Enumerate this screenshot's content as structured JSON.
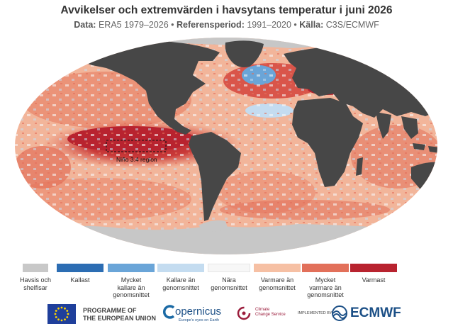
{
  "title": "Avvikelser och extremvärden i havsytans temperatur i juni 2026",
  "subtitle": {
    "data_label": "Data:",
    "data_value": "ERA5 1979–2026",
    "ref_label": "Referensperiod:",
    "ref_value": "1991–2020",
    "source_label": "Källa:",
    "source_value": "C3S/ECMWF"
  },
  "map": {
    "annotation": "Niño 3.4 region",
    "land_color": "#474747",
    "ice_color": "#c7c7c7"
  },
  "legend": [
    {
      "label": "Havsis och\nshelfisar",
      "color": "#c8c8c8"
    },
    {
      "label": "Kallast",
      "color": "#2c6db3"
    },
    {
      "label": "Mycket\nkallare än\ngenomsnittet",
      "color": "#6aa5d8"
    },
    {
      "label": "Kallare än\ngenomsnittet",
      "color": "#c4dcf0"
    },
    {
      "label": "Nära\ngenomsnittet",
      "color": "#f7f7f7"
    },
    {
      "label": "Varmare än\ngenomsnittet",
      "color": "#f6c0a4"
    },
    {
      "label": "Mycket\nvarmare än\ngenomsnittet",
      "color": "#e2705a"
    },
    {
      "label": "Varmast",
      "color": "#b8232f"
    }
  ],
  "footer": {
    "eu_line1": "PROGRAMME OF",
    "eu_line2": "THE EUROPEAN UNION",
    "copernicus": "opernicus",
    "copernicus_tagline": "Europe's eyes on Earth",
    "c3s_line1": "Climate",
    "c3s_line2": "Change Service",
    "implemented_by": "IMPLEMENTED BY",
    "ecmwf": "ECMWF"
  }
}
